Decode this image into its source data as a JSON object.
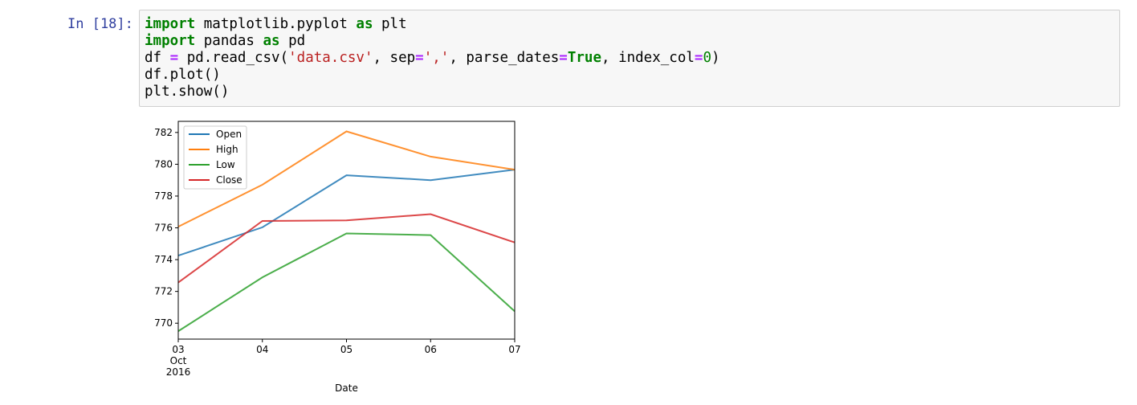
{
  "cell": {
    "prompt": "In [18]:",
    "code_lines": [
      [
        {
          "t": "import",
          "c": "kw"
        },
        {
          "t": " matplotlib.pyplot "
        },
        {
          "t": "as",
          "c": "kw"
        },
        {
          "t": " plt"
        }
      ],
      [
        {
          "t": "import",
          "c": "kw"
        },
        {
          "t": " pandas "
        },
        {
          "t": "as",
          "c": "kw"
        },
        {
          "t": " pd"
        }
      ],
      [
        {
          "t": "df "
        },
        {
          "t": "=",
          "c": "op"
        },
        {
          "t": " pd.read_csv("
        },
        {
          "t": "'data.csv'",
          "c": "str"
        },
        {
          "t": ", sep"
        },
        {
          "t": "=",
          "c": "op"
        },
        {
          "t": "','",
          "c": "str"
        },
        {
          "t": ", parse_dates"
        },
        {
          "t": "=",
          "c": "op"
        },
        {
          "t": "True",
          "c": "const"
        },
        {
          "t": ", index_col"
        },
        {
          "t": "=",
          "c": "op"
        },
        {
          "t": "0",
          "c": "num"
        },
        {
          "t": ")"
        }
      ],
      [
        {
          "t": "df.plot()"
        }
      ],
      [
        {
          "t": "plt.show()"
        }
      ]
    ]
  },
  "chart_data": {
    "type": "line",
    "title": "",
    "xlabel": "Date",
    "ylabel": "",
    "x": [
      "2016-10-03",
      "2016-10-04",
      "2016-10-05",
      "2016-10-06",
      "2016-10-07"
    ],
    "x_tick_labels": [
      [
        "03",
        "Oct",
        "2016"
      ],
      [
        "04"
      ],
      [
        "05"
      ],
      [
        "06"
      ],
      [
        "07"
      ]
    ],
    "ylim": [
      769,
      782.7
    ],
    "y_ticks": [
      770,
      772,
      774,
      776,
      778,
      780,
      782
    ],
    "grid": false,
    "legend_position": "top-left",
    "series": [
      {
        "name": "Open",
        "color": "#1f77b4",
        "values": [
          774.25,
          776.03,
          779.31,
          779.0,
          779.66
        ]
      },
      {
        "name": "High",
        "color": "#ff7f0e",
        "values": [
          776.07,
          778.71,
          782.07,
          780.48,
          779.66
        ]
      },
      {
        "name": "Low",
        "color": "#2ca02c",
        "values": [
          769.5,
          772.89,
          775.65,
          775.54,
          770.75
        ]
      },
      {
        "name": "Close",
        "color": "#d62728",
        "values": [
          772.56,
          776.43,
          776.47,
          776.86,
          775.08
        ]
      }
    ]
  }
}
